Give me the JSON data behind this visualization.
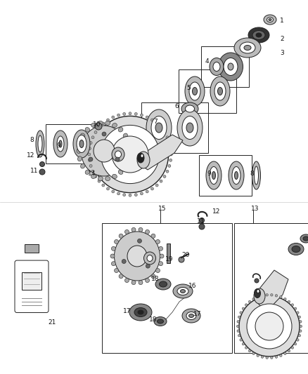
{
  "bg_color": "#ffffff",
  "fig_width": 4.38,
  "fig_height": 5.33,
  "dpi": 100,
  "line_color": "#222222",
  "label_fontsize": 6.5
}
